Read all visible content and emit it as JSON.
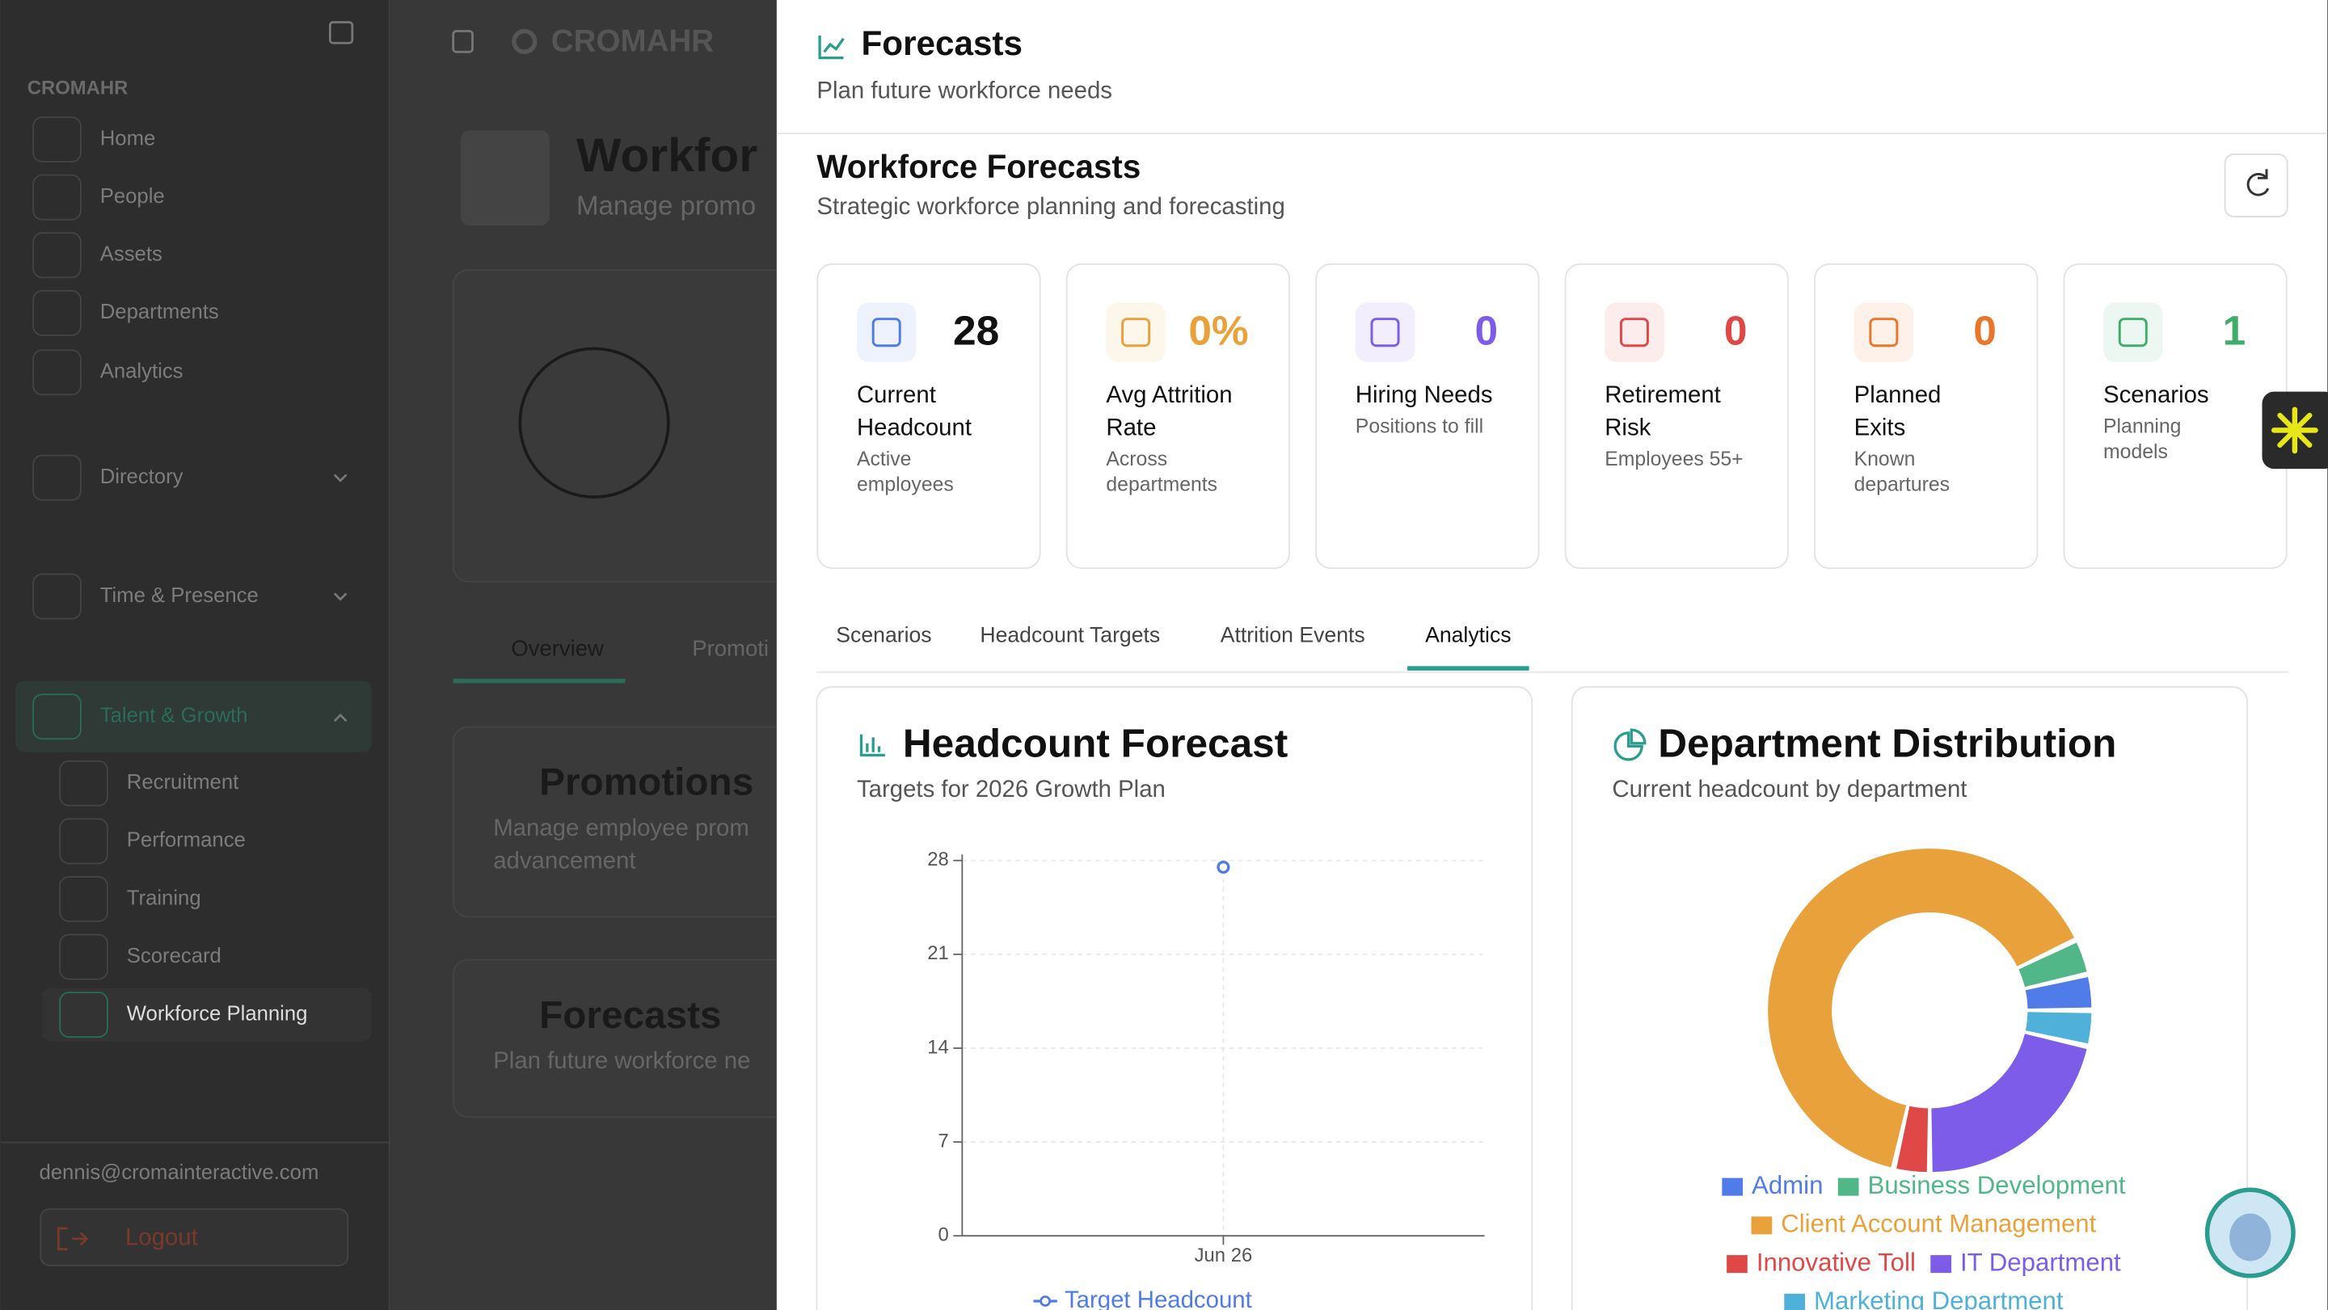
{
  "sidebar": {
    "brand": "CROMAHR",
    "nav": [
      "Home",
      "People",
      "Assets",
      "Departments",
      "Analytics",
      "Directory",
      "Time & Presence",
      "Talent & Growth",
      "Recruitment",
      "Performance",
      "Training",
      "Scorecard",
      "Workforce Planning"
    ],
    "user_email": "dennis@cromainteractive.com",
    "logout": "Logout"
  },
  "background": {
    "brand": "CROMAHR",
    "title": "Workfor",
    "subtitle": "Manage promo",
    "tabs": [
      "Overview",
      "Promoti"
    ],
    "cards": [
      {
        "title": "Promotions",
        "lines": [
          "Manage employee prom",
          "advancement"
        ]
      },
      {
        "title": "Forecasts",
        "lines": [
          "Plan future workforce ne"
        ]
      }
    ]
  },
  "panel": {
    "title": "Forecasts",
    "subtitle": "Plan future workforce needs",
    "section_title": "Workforce Forecasts",
    "section_subtitle": "Strategic workforce planning and forecasting",
    "stats": [
      {
        "value": "28",
        "label": "Current Headcount",
        "sub": "Active employees",
        "color": "#111111",
        "icon_color": "#4f7ce8"
      },
      {
        "value": "0%",
        "label": "Avg Attrition Rate",
        "sub": "Across departments",
        "color": "#e9a23b",
        "icon_color": "#e9a23b"
      },
      {
        "value": "0",
        "label": "Hiring Needs",
        "sub": "Positions to fill",
        "color": "#7c5ce8",
        "icon_color": "#7c5ce8"
      },
      {
        "value": "0",
        "label": "Retirement Risk",
        "sub": "Employees 55+",
        "color": "#e04848",
        "icon_color": "#e04848"
      },
      {
        "value": "0",
        "label": "Planned Exits",
        "sub": "Known departures",
        "color": "#e9772b",
        "icon_color": "#e9772b"
      },
      {
        "value": "1",
        "label": "Scenarios",
        "sub": "Planning models",
        "color": "#3fae6a",
        "icon_color": "#3fae6a"
      }
    ],
    "tabs": [
      "Scenarios",
      "Headcount Targets",
      "Attrition Events",
      "Analytics"
    ],
    "active_tab": 3
  },
  "chart_data": [
    {
      "type": "line",
      "title": "Headcount Forecast",
      "subtitle": "Targets for 2026 Growth Plan",
      "categories": [
        "Jun 26"
      ],
      "series": [
        {
          "name": "Target Headcount",
          "color": "#4f7ce8",
          "values": [
            27.5
          ]
        }
      ],
      "ylim": [
        0,
        28
      ],
      "yticks": [
        0,
        7,
        14,
        21,
        28
      ],
      "grid": true
    },
    {
      "type": "pie",
      "title": "Department Distribution",
      "subtitle": "Current headcount by department",
      "categories": [
        "Admin",
        "Business Development",
        "Client Account Management",
        "Innovative Toll",
        "IT Department",
        "Marketing Department"
      ],
      "values": [
        1,
        1,
        18,
        1,
        6,
        1
      ],
      "colors": [
        "#4f7ce8",
        "#52b788",
        "#e9a23b",
        "#e04848",
        "#7c5ce8",
        "#4fb0d9"
      ]
    }
  ]
}
